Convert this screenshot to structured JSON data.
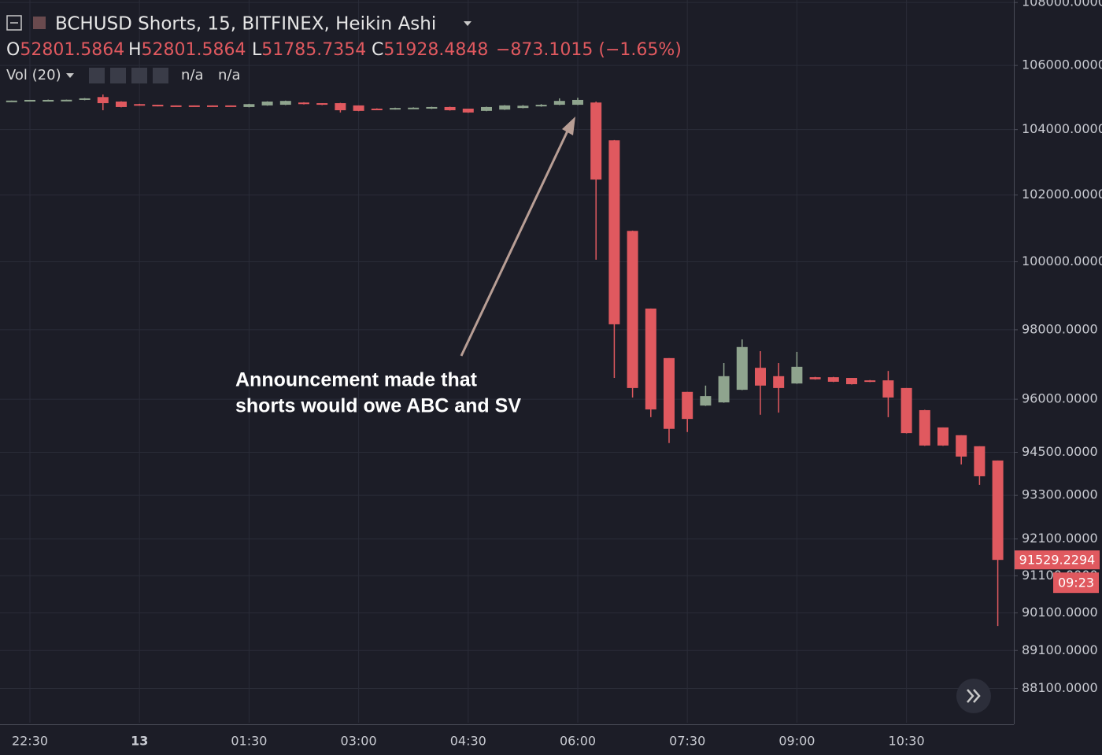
{
  "chart_data": {
    "type": "candlestick",
    "title": "BCHUSD Shorts, 15, BITFINEX, Heikin Ashi",
    "ohlc_header": {
      "o_label": "O",
      "o": 52801.5864,
      "h_label": "H",
      "h": 52801.5864,
      "l_label": "L",
      "l": 51785.7354,
      "c_label": "C",
      "c": 51928.4848,
      "change": "−873.1015 (−1.65%)"
    },
    "volume": {
      "label": "Vol (20)",
      "values": [
        "n/a",
        "n/a"
      ]
    },
    "categories": [
      null,
      "22:30",
      null,
      null,
      null,
      null,
      null,
      "13",
      null,
      null,
      null,
      null,
      null,
      "01:30",
      null,
      null,
      null,
      null,
      null,
      "03:00",
      null,
      null,
      null,
      null,
      null,
      "04:30",
      null,
      null,
      null,
      null,
      null,
      "06:00",
      null,
      null,
      null,
      null,
      null,
      "07:30",
      null,
      null,
      null,
      null,
      null,
      "09:00",
      null,
      null,
      null,
      null,
      null,
      "10:30",
      null,
      null,
      null,
      null,
      null
    ],
    "open": [
      104880,
      104890,
      104910,
      104915,
      104920,
      105010,
      104870,
      104790,
      104770,
      104750,
      104750,
      104750,
      104750,
      104700,
      104750,
      104770,
      104840,
      104820,
      104820,
      104750,
      104650,
      104630,
      104660,
      104650,
      104700,
      104650,
      104580,
      104620,
      104670,
      104720,
      104770,
      104770,
      104840,
      103670,
      100920,
      98620,
      97180,
      96210,
      95820,
      95910,
      96270,
      96900,
      96660,
      96450,
      96630,
      96630,
      96610,
      96540,
      96540,
      96320,
      95690,
      95200,
      94980,
      94670,
      94270
    ],
    "high": [
      104900,
      104920,
      104930,
      104930,
      104980,
      105090,
      104880,
      104800,
      104770,
      104750,
      104750,
      104750,
      104750,
      104800,
      104880,
      104900,
      104850,
      104820,
      104830,
      104750,
      104660,
      104680,
      104690,
      104710,
      104710,
      104650,
      104710,
      104760,
      104760,
      104790,
      104970,
      104990,
      104870,
      103680,
      100930,
      98620,
      97180,
      96210,
      96390,
      97040,
      97720,
      97380,
      97040,
      97360,
      96640,
      96640,
      96610,
      96550,
      96810,
      96320,
      95700,
      95200,
      94980,
      94670,
      94270
    ],
    "low": [
      104880,
      104890,
      104900,
      104910,
      104910,
      104600,
      104690,
      104740,
      104720,
      104740,
      104740,
      104740,
      104740,
      104690,
      104740,
      104760,
      104780,
      104760,
      104530,
      104570,
      104630,
      104620,
      104660,
      104640,
      104590,
      104520,
      104570,
      104610,
      104660,
      104710,
      104760,
      104760,
      100060,
      96610,
      96050,
      95490,
      94760,
      95070,
      95810,
      95900,
      96260,
      95560,
      95620,
      96440,
      96560,
      96490,
      96420,
      96490,
      95490,
      95030,
      94680,
      94680,
      94160,
      93590,
      89750
    ],
    "close": [
      104900,
      104920,
      104920,
      104925,
      104970,
      104820,
      104700,
      104750,
      104720,
      104740,
      104740,
      104740,
      104740,
      104790,
      104870,
      104890,
      104790,
      104770,
      104600,
      104580,
      104640,
      104670,
      104680,
      104700,
      104600,
      104530,
      104700,
      104750,
      104740,
      104770,
      104890,
      104920,
      102470,
      98160,
      96320,
      95710,
      95160,
      95440,
      96090,
      96660,
      97500,
      96390,
      96320,
      96930,
      96570,
      96500,
      96430,
      96500,
      96050,
      95040,
      94690,
      94690,
      94380,
      93830,
      91529.2294
    ],
    "up_color": "#8fa48e",
    "down_color": "#e0595f",
    "countdown": "09:23",
    "annotation": {
      "text": [
        "Announcement made that",
        "shorts would owe ABC and SV"
      ]
    },
    "log_scale": true,
    "grid": true,
    "ylim": [
      87210,
      108080
    ],
    "yticks": [
      {
        "value": 108000,
        "label": "108000.0000"
      },
      {
        "value": 106000,
        "label": "106000.0000"
      },
      {
        "value": 104000,
        "label": "104000.0000"
      },
      {
        "value": 102000,
        "label": "102000.0000"
      },
      {
        "value": 100000,
        "label": "100000.0000"
      },
      {
        "value": 98000,
        "label": "98000.0000"
      },
      {
        "value": 96000,
        "label": "96000.0000"
      },
      {
        "value": 94500,
        "label": "94500.0000"
      },
      {
        "value": 93300,
        "label": "93300.0000"
      },
      {
        "value": 92100,
        "label": "92100.0000"
      },
      {
        "value": 91100,
        "label": "91100.0000"
      },
      {
        "value": 90100,
        "label": "90100.0000"
      },
      {
        "value": 89100,
        "label": "89100.0000"
      },
      {
        "value": 88100,
        "label": "88100.0000"
      }
    ]
  }
}
